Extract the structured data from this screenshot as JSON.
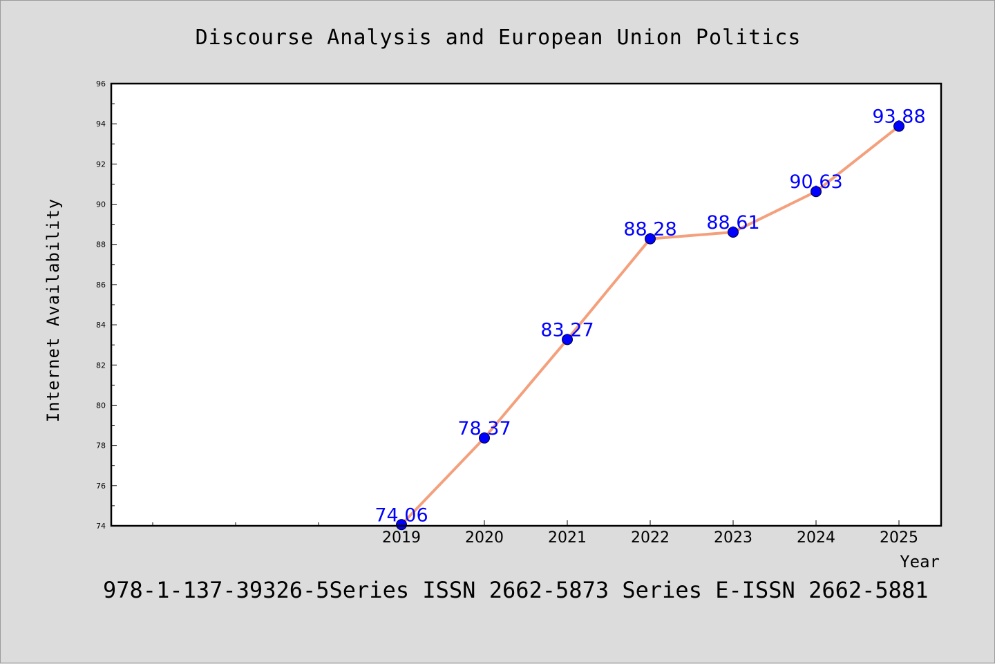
{
  "chart_data": {
    "type": "line",
    "title": "Discourse Analysis and European Union Politics",
    "xlabel": "Year",
    "ylabel": "Internet Availability",
    "categories": [
      "2019",
      "2020",
      "2021",
      "2022",
      "2023",
      "2024",
      "2025"
    ],
    "series": [
      {
        "values": [
          74.06,
          78.37,
          83.27,
          88.28,
          88.61,
          90.63,
          93.88
        ]
      }
    ],
    "data_labels": [
      "74.06",
      "78.37",
      "83.27",
      "88.28",
      "88.61",
      "90.63",
      "93.88"
    ],
    "ylim": [
      74,
      96
    ],
    "yticks": [
      "74",
      "76",
      "78",
      "80",
      "82",
      "84",
      "86",
      "88",
      "90",
      "92",
      "94",
      "96"
    ],
    "grid": false,
    "line_color": "#f4a07c",
    "marker_color": "#0000ff",
    "label_color": "#0000ff",
    "background": "#dcdcdc"
  },
  "footer_text": "978-1-137-39326-5Series ISSN 2662-5873 Series E-ISSN 2662-5881"
}
